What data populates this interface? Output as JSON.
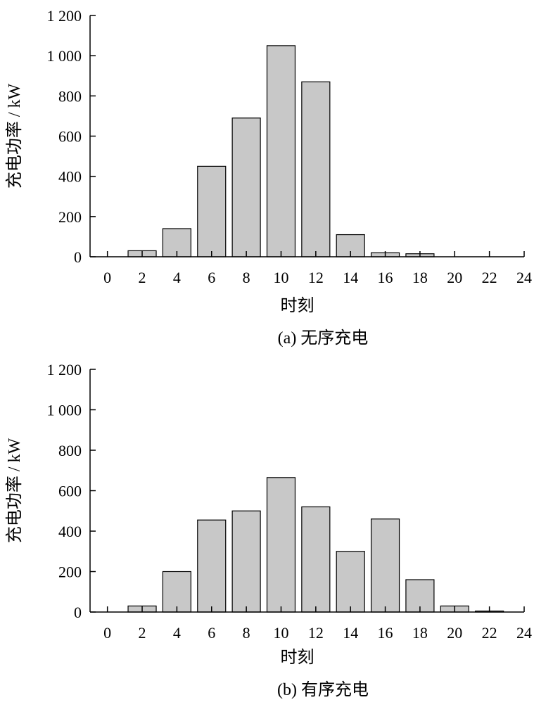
{
  "chart_data": [
    {
      "type": "bar",
      "caption": "(a)  无序充电",
      "xlabel": "时刻",
      "ylabel": "充电功率 / kW",
      "xlim": [
        -1,
        24
      ],
      "ylim": [
        0,
        1200
      ],
      "xticks": [
        0,
        2,
        4,
        6,
        8,
        10,
        12,
        14,
        16,
        18,
        20,
        22,
        24
      ],
      "xtick_labels": [
        "0",
        "2",
        "4",
        "6",
        "8",
        "10",
        "12",
        "14",
        "16",
        "18",
        "20",
        "22",
        "24"
      ],
      "yticks": [
        0,
        200,
        400,
        600,
        800,
        1000,
        1200
      ],
      "ytick_labels": [
        "0",
        "200",
        "400",
        "600",
        "800",
        "1 000",
        "1 200"
      ],
      "x": [
        0,
        2,
        4,
        6,
        8,
        10,
        12,
        14,
        16,
        18,
        20,
        22
      ],
      "values": [
        0,
        30,
        140,
        450,
        690,
        1050,
        870,
        110,
        20,
        15,
        0,
        0
      ],
      "grid": false
    },
    {
      "type": "bar",
      "caption": "(b)  有序充电",
      "xlabel": "时刻",
      "ylabel": "充电功率 / kW",
      "xlim": [
        -1,
        24
      ],
      "ylim": [
        0,
        1200
      ],
      "xticks": [
        0,
        2,
        4,
        6,
        8,
        10,
        12,
        14,
        16,
        18,
        20,
        22,
        24
      ],
      "xtick_labels": [
        "0",
        "2",
        "4",
        "6",
        "8",
        "10",
        "12",
        "14",
        "16",
        "18",
        "20",
        "22",
        "24"
      ],
      "yticks": [
        0,
        200,
        400,
        600,
        800,
        1000,
        1200
      ],
      "ytick_labels": [
        "0",
        "200",
        "400",
        "600",
        "800",
        "1 000",
        "1 200"
      ],
      "x": [
        0,
        2,
        4,
        6,
        8,
        10,
        12,
        14,
        16,
        18,
        20,
        22
      ],
      "values": [
        0,
        30,
        200,
        455,
        500,
        665,
        520,
        300,
        460,
        160,
        30,
        5
      ],
      "grid": false
    }
  ],
  "colors": {
    "bar_fill": "#c8c8c8",
    "bar_stroke": "#000000",
    "axis": "#000000"
  }
}
